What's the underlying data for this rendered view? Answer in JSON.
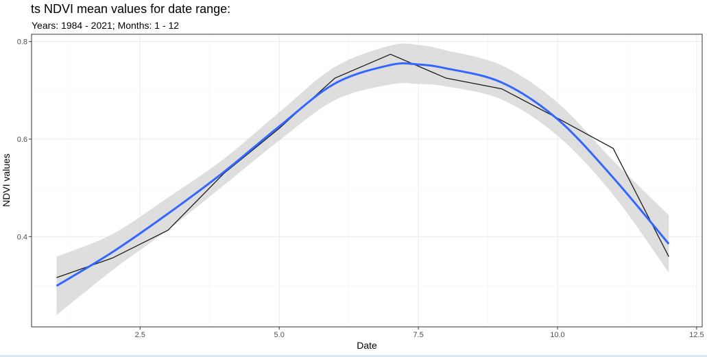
{
  "chart_data": {
    "type": "line",
    "title": "ts NDVI mean values for date range:",
    "subtitle": "Years: 1984 - 2021; Months: 1 - 12",
    "xlabel": "Date",
    "ylabel": "NDVI values",
    "xlim": [
      0.55,
      12.6
    ],
    "ylim": [
      0.215,
      0.815
    ],
    "x_ticks": [
      2.5,
      5.0,
      7.5,
      10.0,
      12.5
    ],
    "x_tick_labels": [
      "2.5",
      "5.0",
      "7.5",
      "10.0",
      "12.5"
    ],
    "y_ticks": [
      0.4,
      0.6,
      0.8
    ],
    "y_tick_labels": [
      "0.4",
      "0.6",
      "0.8"
    ],
    "grid": true,
    "legend": "none",
    "series": [
      {
        "kind": "observed",
        "color": "#1a1a1a",
        "x": [
          1,
          2,
          3,
          4,
          5,
          6,
          7,
          8,
          9,
          10,
          11,
          12
        ],
        "y": [
          0.316,
          0.356,
          0.413,
          0.529,
          0.622,
          0.725,
          0.774,
          0.725,
          0.703,
          0.643,
          0.581,
          0.359
        ]
      },
      {
        "kind": "smooth",
        "color": "#3366ff",
        "x": [
          1,
          2,
          3,
          4,
          5,
          6,
          7,
          7.5,
          8,
          9,
          10,
          11,
          12
        ],
        "y": [
          0.299,
          0.368,
          0.447,
          0.532,
          0.626,
          0.714,
          0.752,
          0.753,
          0.745,
          0.716,
          0.641,
          0.521,
          0.385
        ],
        "band_color": "#d3d3d3",
        "band_lower": [
          0.239,
          0.331,
          0.414,
          0.505,
          0.597,
          0.68,
          0.712,
          0.713,
          0.708,
          0.681,
          0.607,
          0.486,
          0.326
        ],
        "band_upper": [
          0.359,
          0.405,
          0.48,
          0.559,
          0.655,
          0.748,
          0.792,
          0.793,
          0.782,
          0.751,
          0.675,
          0.556,
          0.444
        ]
      }
    ]
  }
}
